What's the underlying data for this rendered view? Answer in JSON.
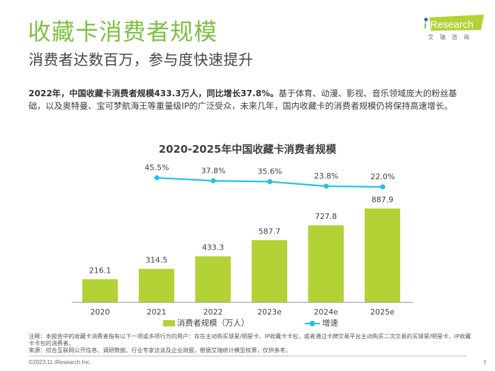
{
  "header": {
    "title": "收藏卡消费者规模",
    "subtitle": "消费者达数百万，参与度快速提升",
    "logo": {
      "brand_i": "i",
      "brand_rest": "Research",
      "sub": "艾瑞咨询"
    }
  },
  "summary": {
    "bold": "2022年，中国收藏卡消费者规模433.3万人，同比增长37.8%。",
    "rest": "基于体育、动漫、影视、音乐领域庞大的粉丝基础，以及奥特曼、宝可梦航海王等重量级IP的广泛受众，未来几年，国内收藏卡的消费者规模仍将保持高速增长。"
  },
  "colors": {
    "title_green": "#7cc143",
    "bar": "#b2d235",
    "line": "#1fc2ed"
  },
  "chart_data": {
    "type": "bar",
    "title": "2020-2025年中国收藏卡消费者规模",
    "categories": [
      "2020",
      "2021",
      "2022",
      "2023e",
      "2024e",
      "2025e"
    ],
    "series": [
      {
        "name": "消费者规模（万人）",
        "type": "bar",
        "values": [
          216.1,
          314.5,
          433.3,
          587.7,
          727.8,
          887.9
        ],
        "labels": [
          "216.1",
          "314.5",
          "433.3",
          "587.7",
          "727.8",
          "887.9"
        ]
      },
      {
        "name": "增速",
        "type": "line",
        "values": [
          45.5,
          37.8,
          35.6,
          23.8,
          22.0
        ],
        "categories": [
          "2021",
          "2022",
          "2023e",
          "2024e",
          "2025e"
        ],
        "labels": [
          "45.5%",
          "37.8%",
          "35.6%",
          "23.8%",
          "22.0%"
        ]
      }
    ],
    "xlabel": "",
    "ylabel": "",
    "ylim": [
      0,
      900
    ],
    "grid": false,
    "legend": "bottom"
  },
  "footer": {
    "note": "注释：本报告中的收藏卡消费者指有以下一项或多项行为的用户：存在主动购买球星/明星卡、IP收藏卡卡包，或者通过卡牌交易平台主动购买二次交易的买球星/明星卡、IP收藏卡卡包的消费者。",
    "source": "来源：综合互联网公开信息、调研数据、行业专家访谈及企业财报，根据艾瑞统计模型核算，仅供参考。",
    "copyright": "©2023.11 iResearch Inc.",
    "page": "7"
  }
}
